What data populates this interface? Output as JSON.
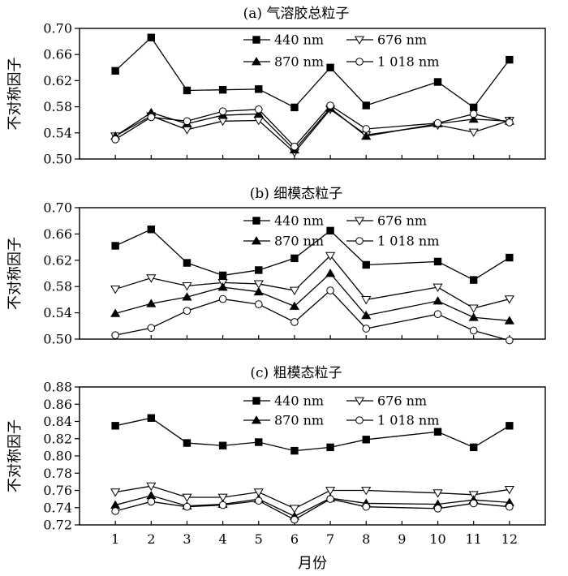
{
  "x_axis_label": "月份",
  "y_axis_label": "不对称因子",
  "chart_data": [
    {
      "type": "line",
      "title": "(a) 气溶胶总粒子",
      "ylabel": "不对称因子",
      "xlabel": "",
      "ylim": [
        0.5,
        0.7
      ],
      "yticks": [
        "0.50",
        "0.54",
        "0.58",
        "0.62",
        "0.66",
        "0.70"
      ],
      "x": [
        1,
        2,
        3,
        4,
        5,
        6,
        7,
        8,
        10,
        11,
        12
      ],
      "legend_position": "top-center",
      "series": [
        {
          "name": "440 nm",
          "marker": "filled-square",
          "values": [
            0.635,
            0.686,
            0.605,
            0.606,
            0.607,
            0.579,
            0.64,
            0.582,
            0.618,
            0.579,
            0.652
          ]
        },
        {
          "name": "676 nm",
          "marker": "open-triangle-down",
          "values": [
            0.535,
            0.566,
            0.545,
            0.558,
            0.559,
            0.51,
            0.576,
            0.537,
            0.552,
            0.541,
            0.559
          ]
        },
        {
          "name": "870 nm",
          "marker": "filled-triangle-up",
          "values": [
            0.535,
            0.571,
            0.554,
            0.567,
            0.569,
            0.514,
            0.578,
            0.535,
            0.554,
            0.561,
            0.558
          ]
        },
        {
          "name": "1 018 nm",
          "marker": "open-circle",
          "values": [
            0.53,
            0.564,
            0.558,
            0.573,
            0.576,
            0.519,
            0.582,
            0.546,
            0.555,
            0.569,
            0.556
          ]
        }
      ]
    },
    {
      "type": "line",
      "title": "(b) 细模态粒子",
      "ylabel": "不对称因子",
      "xlabel": "",
      "ylim": [
        0.5,
        0.7
      ],
      "yticks": [
        "0.50",
        "0.54",
        "0.58",
        "0.62",
        "0.66",
        "0.70"
      ],
      "x": [
        1,
        2,
        3,
        4,
        5,
        6,
        7,
        8,
        10,
        11,
        12
      ],
      "legend_position": "top-center",
      "series": [
        {
          "name": "440 nm",
          "marker": "filled-square",
          "values": [
            0.642,
            0.667,
            0.616,
            0.597,
            0.605,
            0.623,
            0.665,
            0.613,
            0.618,
            0.59,
            0.624
          ]
        },
        {
          "name": "676 nm",
          "marker": "open-triangle-down",
          "values": [
            0.576,
            0.593,
            0.581,
            0.586,
            0.584,
            0.574,
            0.627,
            0.56,
            0.579,
            0.547,
            0.561
          ]
        },
        {
          "name": "870 nm",
          "marker": "filled-triangle-up",
          "values": [
            0.539,
            0.554,
            0.564,
            0.579,
            0.572,
            0.55,
            0.6,
            0.536,
            0.558,
            0.533,
            0.528
          ]
        },
        {
          "name": "1 018 nm",
          "marker": "open-circle",
          "values": [
            0.506,
            0.517,
            0.543,
            0.561,
            0.553,
            0.526,
            0.574,
            0.516,
            0.538,
            0.513,
            0.498
          ]
        }
      ]
    },
    {
      "type": "line",
      "title": "(c) 粗模态粒子",
      "ylabel": "不对称因子",
      "xlabel": "月份",
      "ylim": [
        0.72,
        0.88
      ],
      "yticks": [
        "0.72",
        "0.74",
        "0.76",
        "0.78",
        "0.80",
        "0.82",
        "0.84",
        "0.86",
        "0.88"
      ],
      "x": [
        1,
        2,
        3,
        4,
        5,
        6,
        7,
        8,
        10,
        11,
        12
      ],
      "xticks": [
        "1",
        "2",
        "3",
        "4",
        "5",
        "6",
        "7",
        "8",
        "9",
        "10",
        "11",
        "12"
      ],
      "legend_position": "top-center",
      "series": [
        {
          "name": "440 nm",
          "marker": "filled-square",
          "values": [
            0.835,
            0.844,
            0.815,
            0.812,
            0.816,
            0.806,
            0.81,
            0.819,
            0.828,
            0.81,
            0.835
          ]
        },
        {
          "name": "676 nm",
          "marker": "open-triangle-down",
          "values": [
            0.758,
            0.765,
            0.752,
            0.752,
            0.758,
            0.739,
            0.76,
            0.76,
            0.757,
            0.755,
            0.761
          ]
        },
        {
          "name": "870 nm",
          "marker": "filled-triangle-up",
          "values": [
            0.743,
            0.754,
            0.742,
            0.744,
            0.75,
            0.73,
            0.751,
            0.745,
            0.744,
            0.749,
            0.746
          ]
        },
        {
          "name": "1 018 nm",
          "marker": "open-circle",
          "values": [
            0.736,
            0.747,
            0.741,
            0.743,
            0.748,
            0.726,
            0.75,
            0.741,
            0.739,
            0.745,
            0.741
          ]
        }
      ]
    }
  ]
}
